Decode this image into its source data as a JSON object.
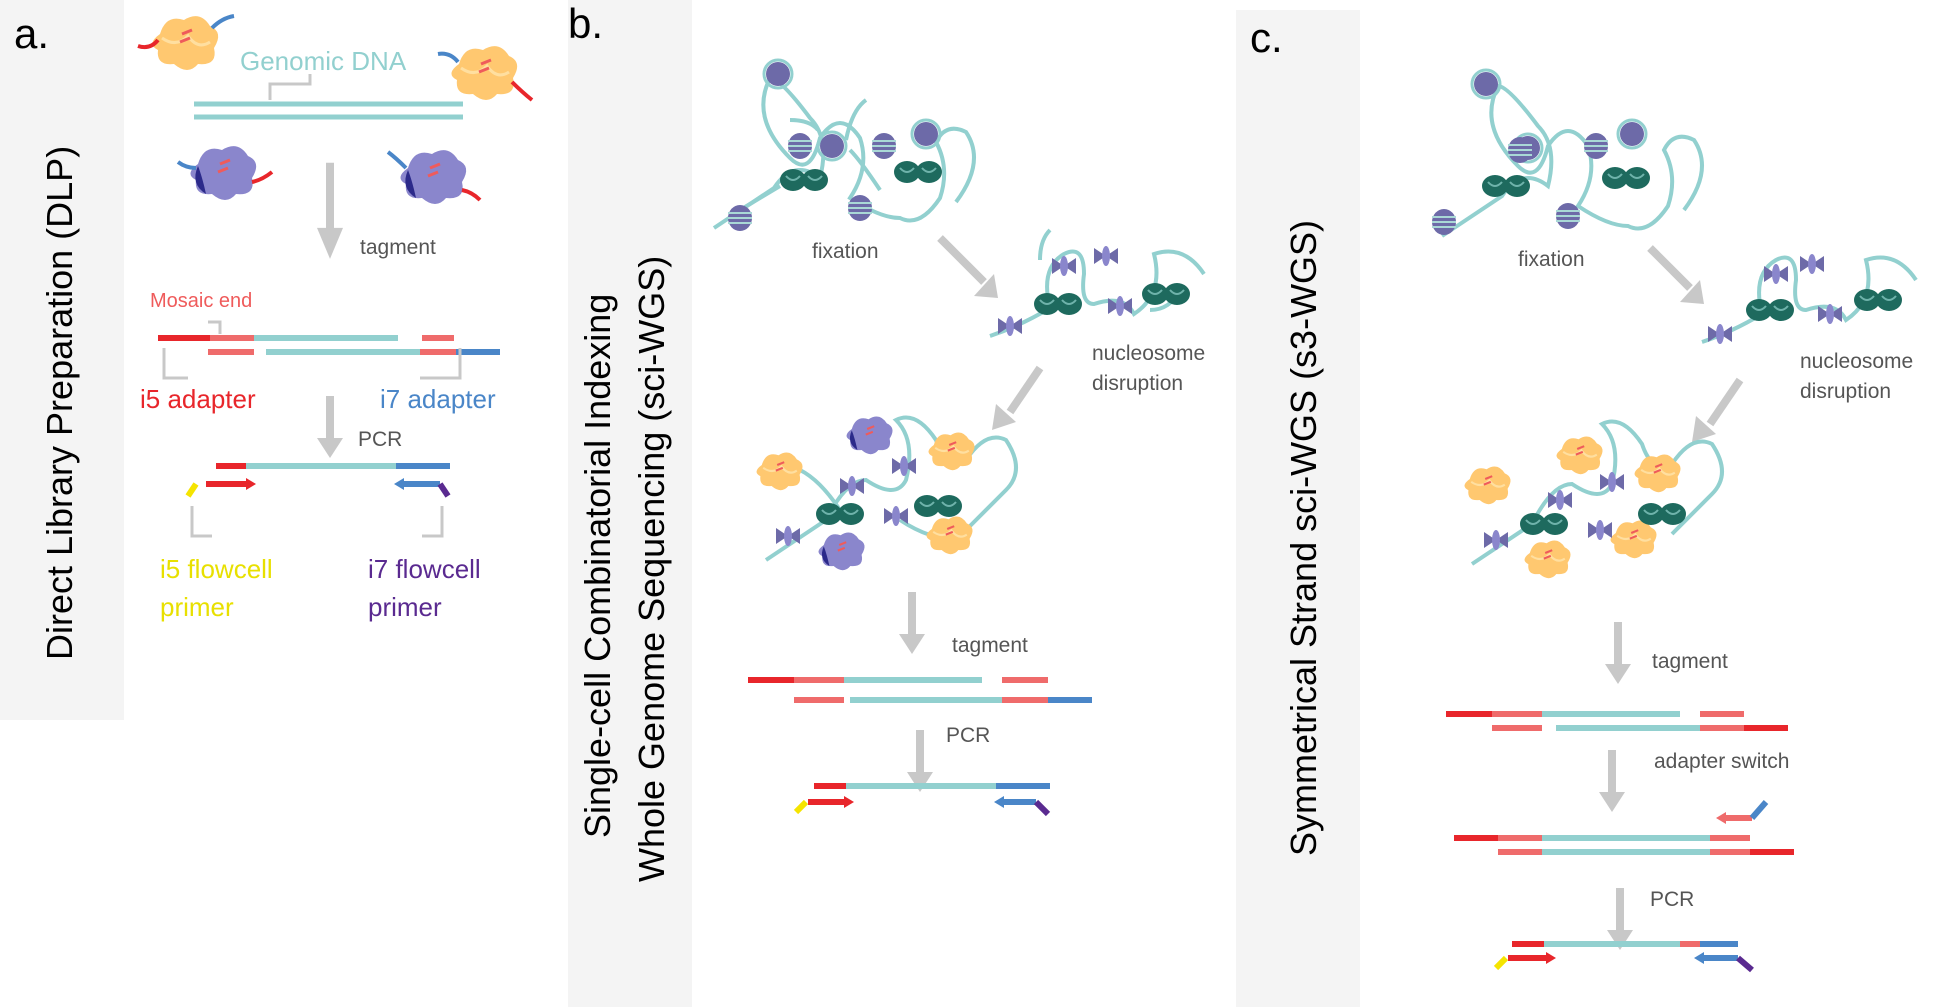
{
  "panels": {
    "a": {
      "letter": "a.",
      "title": "Direct Library Preparation (DLP)",
      "genomic_dna": "Genomic DNA",
      "step_tagment": "tagment",
      "mosaic_end": "Mosaic end",
      "i5_adapter": "i5 adapter",
      "i7_adapter": "i7 adapter",
      "step_pcr": "PCR",
      "i5_primer_line1": "i5 flowcell",
      "i5_primer_line2": "primer",
      "i7_primer_line1": "i7 flowcell",
      "i7_primer_line2": "primer"
    },
    "b": {
      "letter": "b.",
      "title_line1": "Single-cell Combinatorial Indexing",
      "title_line2": "Whole Genome Sequencing (sci-WGS)",
      "step_fixation": "fixation",
      "step_nucleosome_line1": "nucleosome",
      "step_nucleosome_line2": "disruption",
      "step_tagment": "tagment",
      "step_pcr": "PCR"
    },
    "c": {
      "letter": "c.",
      "title": "Symmetrical Strand sci-WGS (s3-WGS)",
      "step_fixation": "fixation",
      "step_nucleosome_line1": "nucleosome",
      "step_nucleosome_line2": "disruption",
      "step_tagment": "tagment",
      "step_adapter_switch": "adapter switch",
      "step_pcr": "PCR"
    }
  },
  "colors": {
    "dna": "#92d0cf",
    "adapter_i5": "#e8262b",
    "mosaic": "#ef6b6b",
    "adapter_i7": "#4a86c8",
    "primer_i5": "#f5e400",
    "primer_i7": "#5a2a90",
    "arrow": "#c8c8c8",
    "nucleosome_dark": "#1e6a5e",
    "histone": "#6d6aa8",
    "tn5_orange": "#ffc870",
    "tn5_purple": "#8a86cc"
  }
}
